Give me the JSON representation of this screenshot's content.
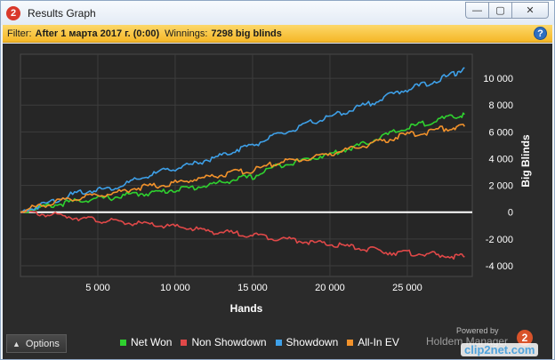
{
  "window": {
    "title": "Results Graph",
    "app_badge": "2",
    "minimize_glyph": "—",
    "maximize_glyph": "▢",
    "close_glyph": "✕"
  },
  "filter": {
    "label": "Filter:",
    "value": "After 1 марта 2017 г. (0:00)",
    "winnings_label": "Winnings:",
    "winnings_value": "7298 big blinds",
    "help_glyph": "?"
  },
  "footer": {
    "options_label": "Options",
    "powered_by": "Powered by",
    "brand": "Holdem Manager",
    "brand_badge": "2"
  },
  "watermark": "clip2net.com",
  "chart_data": {
    "type": "line",
    "xlabel": "Hands",
    "ylabel": "Big Blinds",
    "xlim": [
      0,
      29200
    ],
    "ylim": [
      -4800,
      11800
    ],
    "x_ticks": [
      5000,
      10000,
      15000,
      20000,
      25000
    ],
    "x_tick_labels": [
      "5 000",
      "10 000",
      "15 000",
      "20 000",
      "25 000"
    ],
    "y_ticks": [
      -4000,
      -2000,
      0,
      2000,
      4000,
      6000,
      8000,
      10000
    ],
    "y_tick_labels": [
      "-4 000",
      "-2 000",
      "0",
      "2 000",
      "4 000",
      "6 000",
      "8 000",
      "10 000"
    ],
    "grid": true,
    "legend_position": "bottom",
    "series": [
      {
        "name": "Net Won",
        "color": "#2fd12f",
        "x": [
          0,
          1000,
          2000,
          3000,
          4000,
          5000,
          6000,
          7000,
          8000,
          9000,
          10000,
          11000,
          12000,
          13000,
          14000,
          15000,
          16000,
          17000,
          18000,
          19000,
          20000,
          21000,
          22000,
          23000,
          24000,
          25000,
          26000,
          27000,
          28000,
          28700
        ],
        "y": [
          0,
          300,
          500,
          700,
          900,
          1000,
          1100,
          1300,
          1400,
          1500,
          1700,
          1800,
          2000,
          2200,
          2500,
          2600,
          3200,
          3600,
          3800,
          4100,
          4300,
          4700,
          5000,
          5500,
          5900,
          6300,
          6600,
          6900,
          7100,
          7300
        ]
      },
      {
        "name": "Non Showdown",
        "color": "#e04848",
        "x": [
          0,
          1000,
          2000,
          3000,
          4000,
          5000,
          6000,
          7000,
          8000,
          9000,
          10000,
          11000,
          12000,
          13000,
          14000,
          15000,
          16000,
          17000,
          18000,
          19000,
          20000,
          21000,
          22000,
          23000,
          24000,
          25000,
          26000,
          27000,
          28000,
          28700
        ],
        "y": [
          0,
          -100,
          -200,
          -300,
          -450,
          -600,
          -700,
          -800,
          -900,
          -1000,
          -1100,
          -1200,
          -1400,
          -1500,
          -1600,
          -1700,
          -1850,
          -2000,
          -2100,
          -2300,
          -2400,
          -2550,
          -2700,
          -2850,
          -3000,
          -3050,
          -3100,
          -3200,
          -3300,
          -3350
        ]
      },
      {
        "name": "Showdown",
        "color": "#3ea0e8",
        "x": [
          0,
          1000,
          2000,
          3000,
          4000,
          5000,
          6000,
          7000,
          8000,
          9000,
          10000,
          11000,
          12000,
          13000,
          14000,
          15000,
          16000,
          17000,
          18000,
          19000,
          20000,
          21000,
          22000,
          23000,
          24000,
          25000,
          26000,
          27000,
          28000,
          28700
        ],
        "y": [
          0,
          400,
          800,
          1200,
          1500,
          1700,
          1800,
          2200,
          2600,
          3000,
          3300,
          3500,
          3900,
          4200,
          4700,
          5000,
          5500,
          5900,
          6300,
          6800,
          7100,
          7500,
          7900,
          8300,
          8800,
          9200,
          9500,
          9900,
          10300,
          10800
        ]
      },
      {
        "name": "All-In EV",
        "color": "#f2922b",
        "x": [
          0,
          1000,
          2000,
          3000,
          4000,
          5000,
          6000,
          7000,
          8000,
          9000,
          10000,
          11000,
          12000,
          13000,
          14000,
          15000,
          16000,
          17000,
          18000,
          19000,
          20000,
          21000,
          22000,
          23000,
          24000,
          25000,
          26000,
          27000,
          28000,
          28700
        ],
        "y": [
          0,
          400,
          700,
          900,
          1100,
          1300,
          1400,
          1700,
          1900,
          2000,
          2200,
          2400,
          2600,
          2800,
          3000,
          3100,
          3500,
          3800,
          3900,
          4100,
          4400,
          4600,
          4900,
          5200,
          5500,
          5800,
          5900,
          6200,
          6300,
          6400
        ]
      }
    ]
  }
}
